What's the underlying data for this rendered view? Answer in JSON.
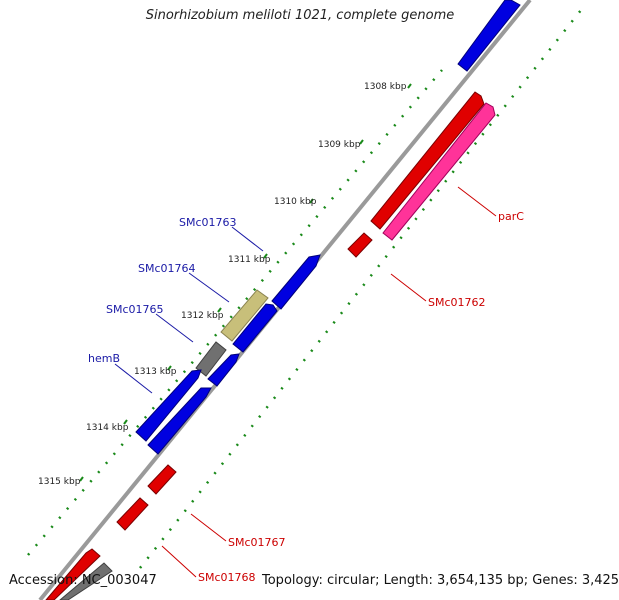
{
  "title": "Sinorhizobium meliloti 1021, complete genome",
  "accession": "Accession: NC_003047",
  "summary": "Topology: circular; Length: 3,654,135 bp; Genes: 3,425",
  "ticks": [
    "1308 kbp",
    "1309 kbp",
    "1310 kbp",
    "1311 kbp",
    "1312 kbp",
    "1313 kbp",
    "1314 kbp",
    "1315 kbp"
  ],
  "forward_labels": [
    "SMc01763",
    "SMc01764",
    "SMc01765",
    "hemB"
  ],
  "reverse_labels": [
    "parC",
    "SMc01762",
    "SMc01767",
    "SMc01768"
  ],
  "colors": {
    "forward_cds": "#0000e0",
    "reverse_cds": "#e00000",
    "pink_feature": "#ff3399",
    "khaki_feature": "#c8bf7a",
    "gray_feature": "#707070",
    "forward_label": "#1a1aa6",
    "reverse_label": "#cc0000",
    "tick_dots": "#1a8a1a",
    "backbone": "#9a9a9a"
  }
}
